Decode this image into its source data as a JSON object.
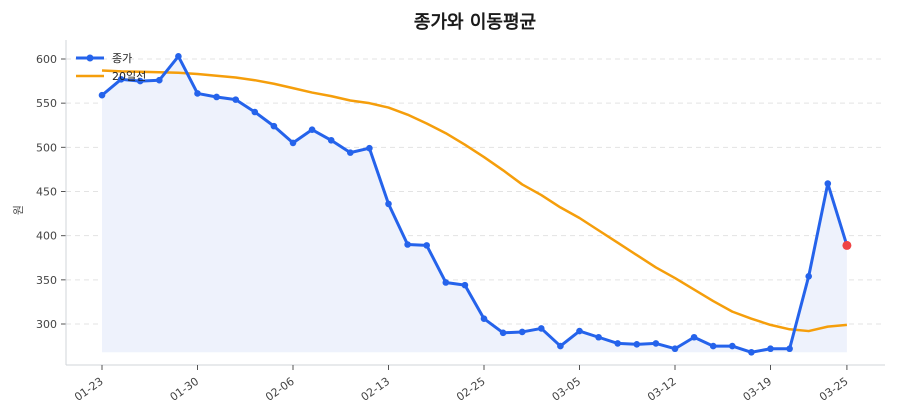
{
  "chart_data": {
    "type": "line",
    "title": "종가와 이동평균",
    "xlabel": "",
    "ylabel": "원",
    "ylim": [
      254,
      620
    ],
    "yticks": [
      300,
      350,
      400,
      450,
      500,
      550,
      600
    ],
    "grid": true,
    "legend_position": "upper left",
    "x_tick_labels": [
      {
        "index": 0,
        "label": "01-23"
      },
      {
        "index": 5,
        "label": "01-30"
      },
      {
        "index": 10,
        "label": "02-06"
      },
      {
        "index": 15,
        "label": "02-13"
      },
      {
        "index": 20,
        "label": "02-25"
      },
      {
        "index": 25,
        "label": "03-05"
      },
      {
        "index": 30,
        "label": "03-12"
      },
      {
        "index": 35,
        "label": "03-19"
      },
      {
        "index": 39,
        "label": "03-25"
      }
    ],
    "series": [
      {
        "name": "종가",
        "color": "#2563eb",
        "marker": "circle",
        "fill": "#eef2fc",
        "values": [
          559,
          577,
          575,
          576,
          603,
          561,
          557,
          554,
          540,
          524,
          505,
          520,
          508,
          494,
          499,
          436,
          390,
          389,
          347,
          344,
          306,
          290,
          291,
          295,
          275,
          292,
          285,
          278,
          277,
          278,
          272,
          285,
          275,
          275,
          268,
          272,
          272,
          354,
          459,
          389
        ],
        "last_point_color": "#ef4444"
      },
      {
        "name": "20일선",
        "color": "#f59e0b",
        "marker": "none",
        "values": [
          587,
          586,
          585.5,
          585,
          584.5,
          583,
          581,
          579,
          576,
          572,
          567,
          562,
          558,
          553,
          550,
          545,
          537,
          527,
          516,
          503,
          489,
          474,
          458,
          446,
          432,
          420,
          406,
          392,
          378,
          364,
          352,
          339,
          326,
          314,
          306,
          299,
          294,
          292,
          297,
          299
        ]
      }
    ]
  },
  "legend": {
    "items": [
      {
        "label": "종가"
      },
      {
        "label": "20일선"
      }
    ]
  }
}
